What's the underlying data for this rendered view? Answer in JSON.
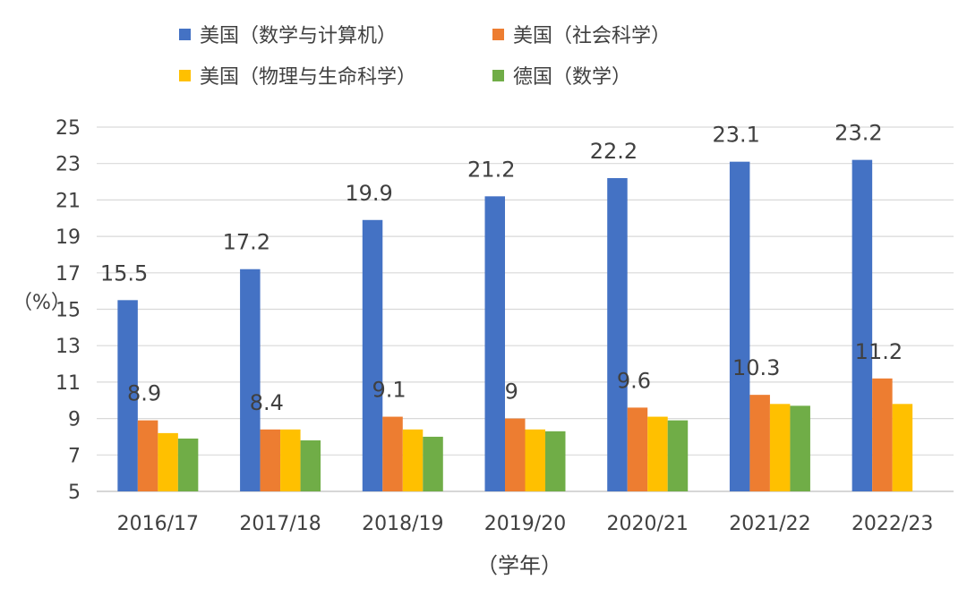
{
  "chart_data": {
    "type": "bar",
    "categories": [
      "2016/17",
      "2017/18",
      "2018/19",
      "2019/20",
      "2020/21",
      "2021/22",
      "2022/23"
    ],
    "series": [
      {
        "name": "美国（数学与计算机）",
        "color": "#4472C4",
        "values": [
          15.5,
          17.2,
          19.9,
          21.2,
          22.2,
          23.1,
          23.2
        ],
        "labels": [
          "15.5",
          "17.2",
          "19.9",
          "21.2",
          "22.2",
          "23.1",
          "23.2"
        ]
      },
      {
        "name": "美国（社会科学）",
        "color": "#ED7D31",
        "values": [
          8.9,
          8.4,
          9.1,
          9.0,
          9.6,
          10.3,
          11.2
        ],
        "labels": [
          "8.9",
          "8.4",
          "9.1",
          "9",
          "9.6",
          "10.3",
          "11.2"
        ]
      },
      {
        "name": "美国（物理与生命科学）",
        "color": "#FFC000",
        "values": [
          8.2,
          8.4,
          8.4,
          8.4,
          9.1,
          9.8,
          9.8
        ],
        "labels": []
      },
      {
        "name": "德国（数学）",
        "color": "#70AD47",
        "values": [
          7.9,
          7.8,
          8.0,
          8.3,
          8.9,
          9.7,
          null
        ],
        "labels": []
      }
    ],
    "xlabel": "（学年）",
    "ylabel": "（%）",
    "ylim": [
      5,
      25
    ],
    "yticks": [
      5,
      7,
      9,
      11,
      13,
      15,
      17,
      19,
      21,
      23,
      25
    ],
    "grid": true,
    "legend_position": "top"
  }
}
